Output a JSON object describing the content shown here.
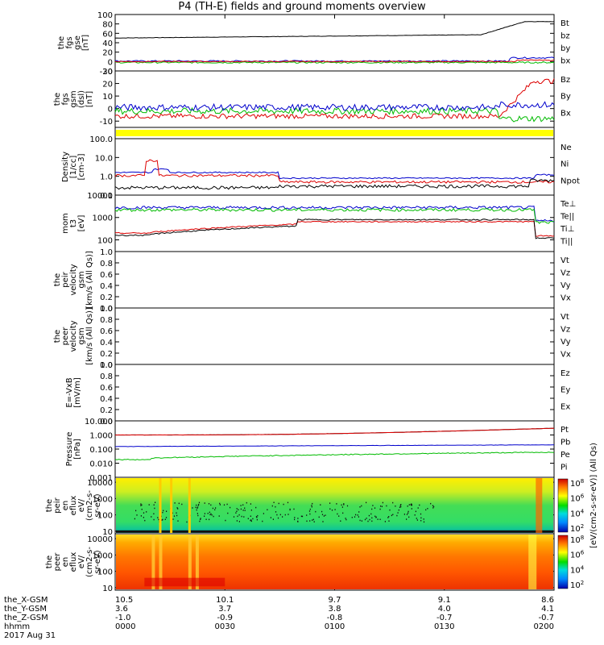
{
  "title": "P4 (TH-E) fields and ground moments overview",
  "colors": {
    "black": "#000000",
    "red": "#dd0000",
    "green": "#00bb00",
    "blue": "#0000cc",
    "yellow": "#ffff00"
  },
  "chart_data": {
    "type": "line",
    "x_time_labels": [
      "0000",
      "0030",
      "0100",
      "0130",
      "0200"
    ],
    "x_range_minutes": [
      0,
      120
    ],
    "date_label": "2017 Aug 31",
    "ephemeris": {
      "rows": [
        {
          "label": "the_X-GSM",
          "values": [
            "10.5",
            "10.1",
            "9.7",
            "9.1",
            "8.6"
          ]
        },
        {
          "label": "the_Y-GSM",
          "values": [
            "3.6",
            "3.7",
            "3.8",
            "4.0",
            "4.1"
          ]
        },
        {
          "label": "the_Z-GSM",
          "values": [
            "-1.0",
            "-0.9",
            "-0.8",
            "-0.7",
            "-0.7"
          ]
        },
        {
          "label": "hhmm",
          "values": [
            "0000",
            "0030",
            "0100",
            "0130",
            "0200"
          ]
        }
      ]
    },
    "panels": [
      {
        "id": "fgs_gse",
        "ylabel": [
          "the",
          "fgs",
          "gse",
          "[nT]"
        ],
        "scale": "linear",
        "ylim": [
          -20,
          100
        ],
        "ticks": [
          "100",
          "80",
          "60",
          "40",
          "20",
          "0",
          "-20"
        ],
        "legend": [
          {
            "t": "Bt",
            "c": "black"
          },
          {
            "t": "bz",
            "c": "red"
          },
          {
            "t": "by",
            "c": "green"
          },
          {
            "t": "bx",
            "c": "blue"
          }
        ]
      },
      {
        "id": "fgs_gsm",
        "ylabel": [
          "the",
          "fgs",
          "gsm",
          "(dsl)",
          "[nT]"
        ],
        "scale": "linear",
        "ylim": [
          -15,
          30
        ],
        "ticks": [
          "30",
          "20",
          "10",
          "0",
          "-10"
        ],
        "legend": [
          {
            "t": "Bz",
            "c": "red"
          },
          {
            "t": "By",
            "c": "green"
          },
          {
            "t": "Bx",
            "c": "blue"
          }
        ]
      },
      {
        "id": "mode_bar",
        "ylabel": [],
        "scale": "none",
        "ticks": [],
        "legend": []
      },
      {
        "id": "density",
        "ylabel": [
          "Density",
          "[1/cc]",
          "[cm-3]"
        ],
        "scale": "log",
        "ylim": [
          0.1,
          100
        ],
        "ticks": [
          "100.0",
          "10.0",
          "1.0",
          "0.1"
        ],
        "legend": [
          {
            "t": "Ne",
            "c": "red"
          },
          {
            "t": "Ni",
            "c": "black"
          },
          {
            "t": "Npot",
            "c": "blue"
          }
        ]
      },
      {
        "id": "temp",
        "ylabel": [
          "mom",
          "t3",
          "[eV]"
        ],
        "scale": "log",
        "ylim": [
          30,
          10000
        ],
        "ticks": [
          "10000",
          "1000",
          "100"
        ],
        "legend": [
          {
            "t": "Te⊥",
            "c": "red"
          },
          {
            "t": "Te||",
            "c": "black"
          },
          {
            "t": "Ti⊥",
            "c": "blue"
          },
          {
            "t": "Ti||",
            "c": "green"
          }
        ]
      },
      {
        "id": "peir_vel",
        "ylabel": [
          "the",
          "peir",
          "velocity",
          "gsm",
          "[km/s (All Qs)]"
        ],
        "scale": "linear",
        "ylim": [
          0,
          1
        ],
        "ticks": [
          "1.0",
          "0.8",
          "0.6",
          "0.4",
          "0.2",
          "0.0"
        ],
        "legend": [
          {
            "t": "Vt",
            "c": "black"
          },
          {
            "t": "Vz",
            "c": "red"
          },
          {
            "t": "Vy",
            "c": "green"
          },
          {
            "t": "Vx",
            "c": "blue"
          }
        ]
      },
      {
        "id": "peer_vel",
        "ylabel": [
          "the",
          "peer",
          "velocity",
          "gsm",
          "[km/s (All Qs)]"
        ],
        "scale": "linear",
        "ylim": [
          0,
          1
        ],
        "ticks": [
          "1.0",
          "0.8",
          "0.6",
          "0.4",
          "0.2",
          "0.0"
        ],
        "legend": [
          {
            "t": "Vt",
            "c": "black"
          },
          {
            "t": "Vz",
            "c": "red"
          },
          {
            "t": "Vy",
            "c": "green"
          },
          {
            "t": "Vx",
            "c": "blue"
          }
        ]
      },
      {
        "id": "exb",
        "ylabel": [
          "E=-VxB",
          "[mV/m]"
        ],
        "scale": "linear",
        "ylim": [
          0,
          1
        ],
        "ticks": [
          "1.0",
          "0.8",
          "0.6",
          "0.4",
          "0.2",
          "0.0"
        ],
        "legend": [
          {
            "t": "Ez",
            "c": "red"
          },
          {
            "t": "Ey",
            "c": "green"
          },
          {
            "t": "Ex",
            "c": "blue"
          }
        ]
      },
      {
        "id": "pressure",
        "ylabel": [
          "Pressure",
          "[nPa]"
        ],
        "scale": "log",
        "ylim": [
          0.001,
          10
        ],
        "ticks": [
          "10.000",
          "1.000",
          "0.100",
          "0.010",
          "0.001"
        ],
        "legend": [
          {
            "t": "Pt",
            "c": "black"
          },
          {
            "t": "Pb",
            "c": "red"
          },
          {
            "t": "Pe",
            "c": "green"
          },
          {
            "t": "Pi",
            "c": "blue"
          }
        ]
      },
      {
        "id": "peir_spec",
        "ylabel": [
          "the",
          "peir",
          "en",
          "eflux",
          "eV/",
          "(cm2-s-",
          "sr-eV)"
        ],
        "scale": "log",
        "ylim": [
          7,
          20000
        ],
        "ticks": [
          "10000",
          "1000",
          "100",
          "10"
        ],
        "legend": [],
        "colorbar": {
          "ticks": [
            "10^8",
            "10^6",
            "10^4",
            "10^2"
          ],
          "label": "[eV/(cm2-s-sr-eV)]"
        }
      },
      {
        "id": "peer_spec",
        "ylabel": [
          "the",
          "peer",
          "en",
          "eflux",
          "eV/",
          "(cm2-s-",
          "sr-eV)"
        ],
        "scale": "log",
        "ylim": [
          7,
          20000
        ],
        "ticks": [
          "10000",
          "1000",
          "100",
          "10"
        ],
        "legend": [],
        "colorbar": {
          "ticks": [
            "10^8",
            "10^6",
            "10^4",
            "10^2"
          ],
          "label": "[eV/(cm2-s-sr-eV)]"
        }
      }
    ],
    "colorbar_title": "[eV/(cm2-s-sr-eV)] (All Qs)",
    "series_summary": {
      "Bt": {
        "start": 50,
        "mid": 57,
        "end": 85
      },
      "Bz": {
        "start": -5,
        "end": 22
      },
      "Ne": {
        "start": 1.2,
        "spike": 8,
        "mid": 0.5
      },
      "Ni": {
        "start": 0.3,
        "mid": 0.3
      },
      "Npot": {
        "start": 1.5,
        "mid": 2,
        "end": 0.8
      },
      "Ti": {
        "start": 2500,
        "mid": 3000
      },
      "Te": {
        "start": 200,
        "mid": 600,
        "end": 700
      },
      "Pt": {
        "start": 1.0,
        "end": 3.0
      },
      "Pb": {
        "start": 1.0,
        "end": 3.0
      },
      "Pe": {
        "start": 0.02,
        "end": 0.06
      },
      "Pi": {
        "start": 0.15,
        "end": 0.2
      }
    }
  }
}
